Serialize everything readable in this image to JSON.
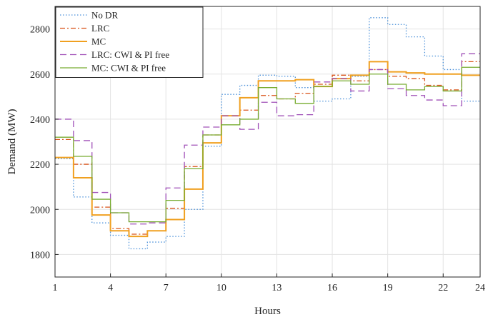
{
  "chart_data": {
    "type": "line",
    "step": true,
    "title": "",
    "xlabel": "Hours",
    "ylabel": "Demand (MW)",
    "xlim": [
      1,
      24
    ],
    "ylim": [
      1700,
      2900
    ],
    "xticks": [
      1,
      4,
      7,
      10,
      13,
      16,
      19,
      22,
      24
    ],
    "yticks": [
      1800,
      2000,
      2200,
      2400,
      2600,
      2800
    ],
    "grid": true,
    "legend_position": "top-left",
    "series": [
      {
        "name": "No DR",
        "color": "#4a90d9",
        "dash": "1.5,2.5",
        "values": [
          2225,
          2055,
          1940,
          1885,
          1825,
          1855,
          1880,
          2000,
          2280,
          2510,
          2550,
          2595,
          2590,
          2540,
          2480,
          2490,
          2590,
          2850,
          2820,
          2765,
          2680,
          2620,
          2480
        ]
      },
      {
        "name": "LRC",
        "color": "#d95319",
        "dash": "7,3,2,3",
        "values": [
          2310,
          2200,
          2010,
          1915,
          1890,
          1905,
          2005,
          2190,
          2330,
          2415,
          2440,
          2505,
          2490,
          2515,
          2555,
          2595,
          2570,
          2620,
          2590,
          2580,
          2550,
          2530,
          2655
        ]
      },
      {
        "name": "MC",
        "color": "#f0a020",
        "dash": "",
        "width": 2,
        "values": [
          2230,
          2140,
          1975,
          1905,
          1880,
          1905,
          1955,
          2090,
          2295,
          2415,
          2495,
          2570,
          2570,
          2575,
          2545,
          2580,
          2595,
          2655,
          2610,
          2605,
          2600,
          2600,
          2595
        ]
      },
      {
        "name": "LRC: CWI & PI free",
        "color": "#a050b8",
        "dash": "9,5",
        "values": [
          2400,
          2305,
          2075,
          1985,
          1935,
          1940,
          2095,
          2285,
          2365,
          2415,
          2355,
          2475,
          2415,
          2420,
          2565,
          2580,
          2525,
          2620,
          2535,
          2505,
          2485,
          2460,
          2690
        ]
      },
      {
        "name": "MC: CWI & PI free",
        "color": "#77ac30",
        "dash": "",
        "values": [
          2320,
          2235,
          2045,
          1985,
          1945,
          1945,
          2040,
          2180,
          2330,
          2375,
          2400,
          2540,
          2490,
          2470,
          2545,
          2570,
          2555,
          2600,
          2555,
          2530,
          2545,
          2525,
          2630
        ]
      }
    ]
  }
}
